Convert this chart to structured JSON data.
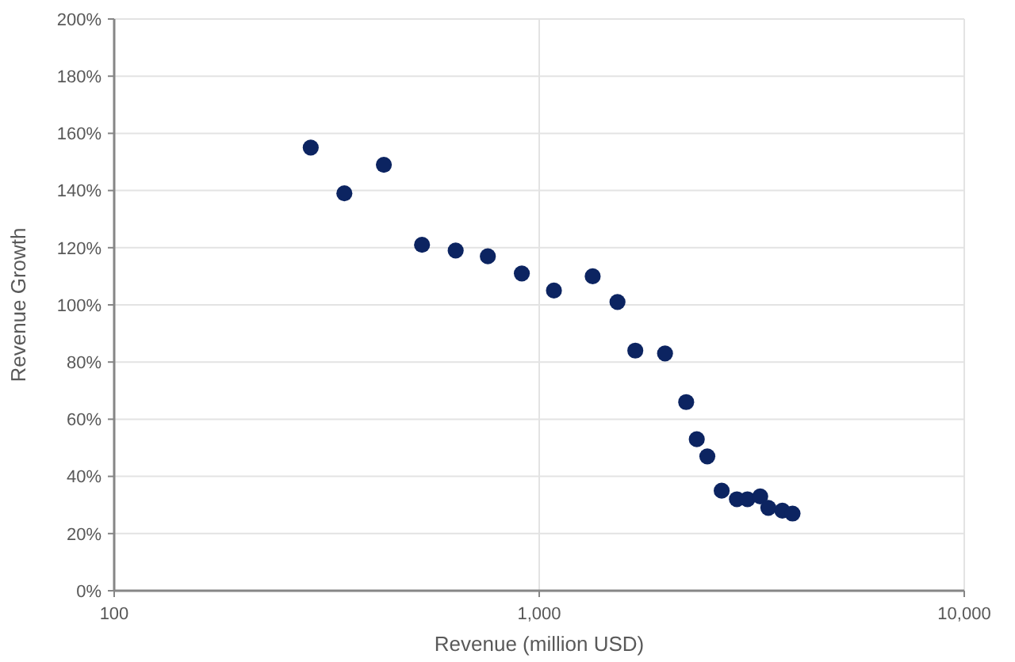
{
  "chart_data": {
    "type": "scatter",
    "xlabel": "Revenue (million USD)",
    "ylabel": "Revenue Growth",
    "log": "x",
    "grid": true,
    "marker": "circle",
    "xlim": [
      100,
      10000
    ],
    "xticks": [
      {
        "value": 100,
        "label": "100"
      },
      {
        "value": 1000,
        "label": "1,000"
      },
      {
        "value": 10000,
        "label": "10,000"
      }
    ],
    "ylim": [
      0,
      200
    ],
    "yticks": [
      {
        "value": 0,
        "label": "0%"
      },
      {
        "value": 20,
        "label": "20%"
      },
      {
        "value": 40,
        "label": "40%"
      },
      {
        "value": 60,
        "label": "60%"
      },
      {
        "value": 80,
        "label": "80%"
      },
      {
        "value": 100,
        "label": "100%"
      },
      {
        "value": 120,
        "label": "120%"
      },
      {
        "value": 140,
        "label": "140%"
      },
      {
        "value": 160,
        "label": "160%"
      },
      {
        "value": 180,
        "label": "180%"
      },
      {
        "value": 200,
        "label": "200%"
      }
    ],
    "series": [
      {
        "color": "#0c2461",
        "x": [
          290,
          348,
          431,
          530,
          636,
          757,
          910,
          1083,
          1336,
          1528,
          1683,
          1977,
          2217,
          2348,
          2486,
          2687,
          2918,
          3090,
          3311,
          3460,
          3733,
          3945
        ],
        "values": [
          155,
          139,
          149,
          121,
          119,
          117,
          111,
          105,
          110,
          101,
          84,
          83,
          66,
          53,
          47,
          35,
          32,
          32,
          33,
          29,
          28,
          27
        ]
      }
    ]
  }
}
